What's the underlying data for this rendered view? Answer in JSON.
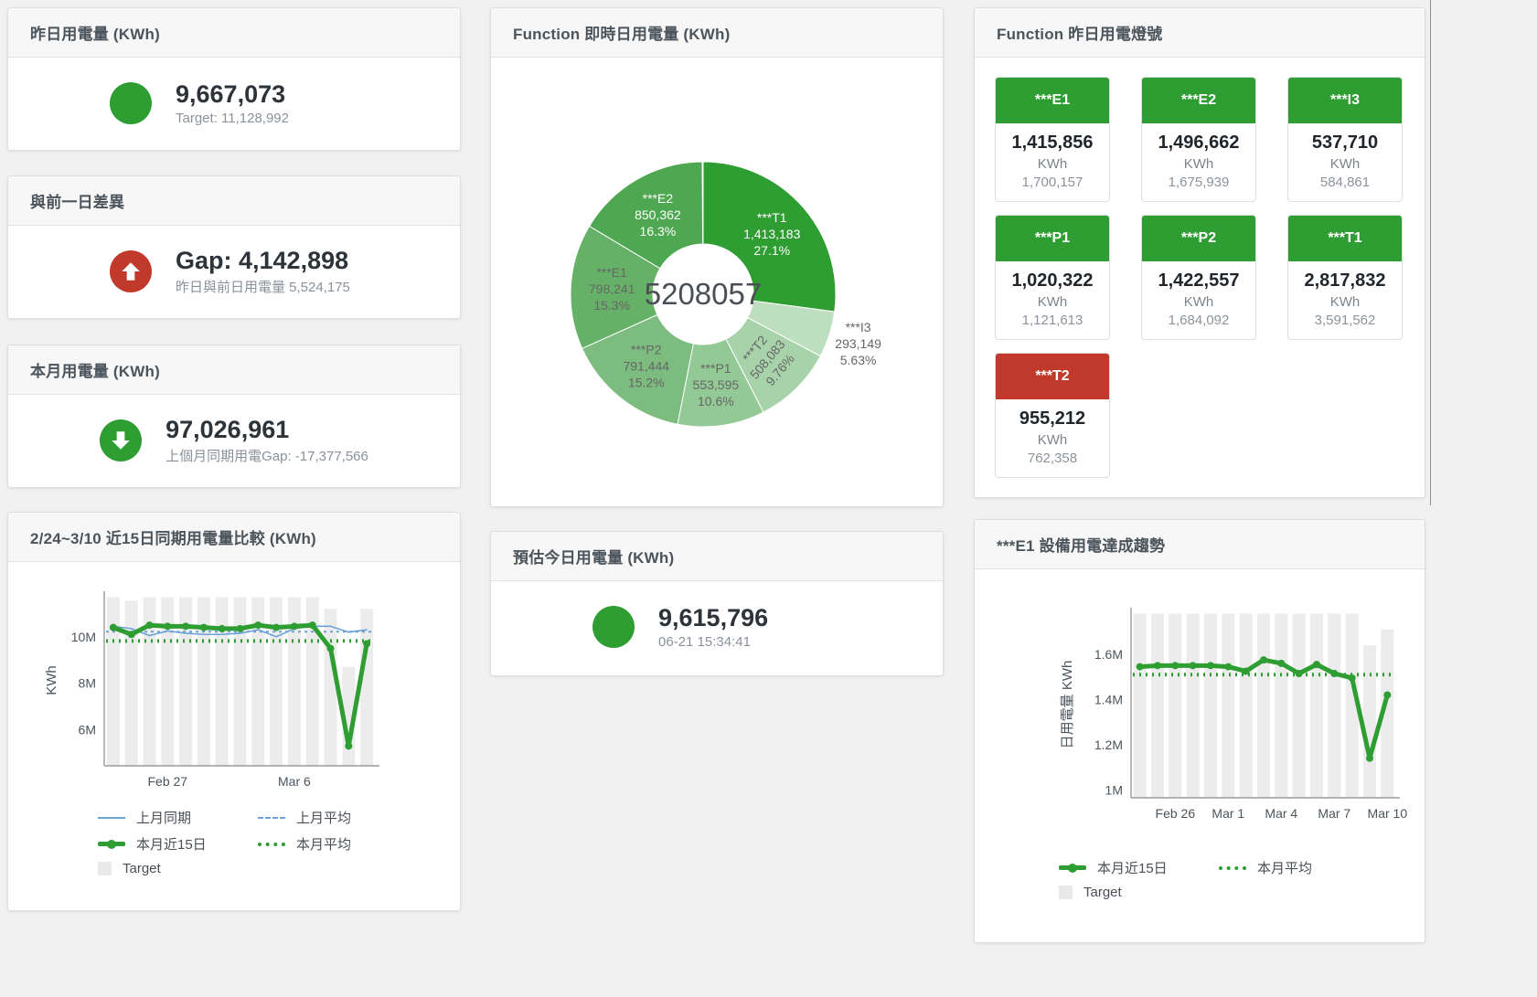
{
  "colors": {
    "green_accent": "#2e9d32",
    "red_accent": "#c0392b",
    "blue_line": "#6ba3d6",
    "target_bar_grey": "#ececec"
  },
  "cards": {
    "yesterday": {
      "title": "昨日用電量 (KWh)",
      "value": "9,667,073",
      "subtitle": "Target: 11,128,992"
    },
    "day_gap": {
      "title": "與前一日差異",
      "value": "Gap: 4,142,898",
      "subtitle": "昨日與前日用電量 5,524,175"
    },
    "month": {
      "title": "本月用電量 (KWh)",
      "value": "97,026,961",
      "subtitle": "上個月同期用電Gap: -17,377,566"
    },
    "forecast": {
      "title": "預估今日用電量 (KWh)",
      "value": "9,615,796",
      "subtitle": "06-21 15:34:41"
    },
    "realtime_donut": {
      "title": "Function 即時日用電量 (KWh)"
    },
    "lights": {
      "title": "Function 昨日用電燈號"
    },
    "compare": {
      "title": "2/24~3/10 近15日同期用電量比較 (KWh)"
    },
    "trend": {
      "title": "***E1 設備用電達成趨勢"
    }
  },
  "tiles": [
    {
      "label": "***E1",
      "status": "green",
      "value": "1,415,856",
      "unit": "KWh",
      "target": "1,700,157"
    },
    {
      "label": "***E2",
      "status": "green",
      "value": "1,496,662",
      "unit": "KWh",
      "target": "1,675,939"
    },
    {
      "label": "***I3",
      "status": "green",
      "value": "537,710",
      "unit": "KWh",
      "target": "584,861"
    },
    {
      "label": "***P1",
      "status": "green",
      "value": "1,020,322",
      "unit": "KWh",
      "target": "1,121,613"
    },
    {
      "label": "***P2",
      "status": "green",
      "value": "1,422,557",
      "unit": "KWh",
      "target": "1,684,092"
    },
    {
      "label": "***T1",
      "status": "green",
      "value": "2,817,832",
      "unit": "KWh",
      "target": "3,591,562"
    },
    {
      "label": "***T2",
      "status": "red",
      "value": "955,212",
      "unit": "KWh",
      "target": "762,358"
    }
  ],
  "chart_data": [
    {
      "id": "donut",
      "type": "pie",
      "title": "Function 即時日用電量 (KWh)",
      "center_total": "5208057",
      "slices": [
        {
          "name": "***T1",
          "value": 1413183,
          "display": "1,413,183",
          "pct": "27.1%",
          "share": 27.1,
          "color": "#2e9d32",
          "label_color": "#ffffff"
        },
        {
          "name": "***I3",
          "value": 293149,
          "display": "293,149",
          "pct": "5.63%",
          "share": 5.63,
          "color": "#bedfbf",
          "label_color": "#666666",
          "outside": true
        },
        {
          "name": "***T2",
          "value": 508083,
          "display": "508,083",
          "pct": "9.76%",
          "share": 9.76,
          "color": "#a8d3aa",
          "label_color": "#666666",
          "rotate": -50
        },
        {
          "name": "***P1",
          "value": 553595,
          "display": "553,595",
          "pct": "10.6%",
          "share": 10.6,
          "color": "#93c995",
          "label_color": "#666666"
        },
        {
          "name": "***P2",
          "value": 791444,
          "display": "791,444",
          "pct": "15.2%",
          "share": 15.2,
          "color": "#7cbc7e",
          "label_color": "#666666"
        },
        {
          "name": "***E1",
          "value": 798241,
          "display": "798,241",
          "pct": "15.3%",
          "share": 15.3,
          "color": "#66b168",
          "label_color": "#666666"
        },
        {
          "name": "***E2",
          "value": 850362,
          "display": "850,362",
          "pct": "16.3%",
          "share": 16.3,
          "color": "#4ea751",
          "label_color": "#ffffff"
        }
      ]
    },
    {
      "id": "compare",
      "type": "bar",
      "title": "2/24~3/10 近15日同期用電量比較 (KWh)",
      "ylabel": "KWh",
      "unit": "M KWh",
      "ylim": [
        4.45,
        11.8
      ],
      "yticks": [
        {
          "v": 6,
          "label": "6M"
        },
        {
          "v": 8,
          "label": "8M"
        },
        {
          "v": 10,
          "label": "10M"
        }
      ],
      "xticks": [
        {
          "index": 3,
          "label": "Feb 27"
        },
        {
          "index": 10,
          "label": "Mar 6"
        }
      ],
      "bars": {
        "name": "Target",
        "color": "#ececec",
        "values": [
          11.7,
          11.55,
          11.7,
          11.7,
          11.7,
          11.7,
          11.7,
          11.7,
          11.7,
          11.7,
          11.7,
          11.7,
          11.2,
          8.7,
          11.2
        ]
      },
      "series": [
        {
          "name": "上月同期",
          "type": "line",
          "color": "#6ba3d6",
          "width": 1.6,
          "values": [
            10.45,
            10.35,
            10.05,
            10.25,
            10.15,
            10.1,
            10.1,
            10.15,
            10.3,
            10.0,
            10.35,
            10.45,
            10.45,
            10.2,
            10.3
          ]
        },
        {
          "name": "上月平均",
          "type": "avg",
          "color": "#6ba3d6",
          "width": 2,
          "dash": "3 4",
          "value": 10.22
        },
        {
          "name": "本月近15日",
          "type": "line",
          "color": "#2e9d32",
          "width": 5,
          "markers": true,
          "values": [
            10.4,
            10.1,
            10.5,
            10.45,
            10.45,
            10.4,
            10.35,
            10.35,
            10.5,
            10.4,
            10.45,
            10.5,
            9.5,
            5.3,
            9.7
          ]
        },
        {
          "name": "本月平均",
          "type": "avg",
          "color": "#2e9d32",
          "width": 4,
          "dash": "2 5",
          "value": 9.82
        }
      ],
      "legend": [
        {
          "swatch": "line-blue",
          "label": "上月同期"
        },
        {
          "swatch": "dash-blue",
          "label": "上月平均"
        },
        {
          "swatch": "line-green",
          "label": "本月近15日"
        },
        {
          "swatch": "dot-green",
          "label": "本月平均"
        },
        {
          "swatch": "square-grey",
          "label": "Target"
        }
      ]
    },
    {
      "id": "trend",
      "type": "bar",
      "title": "***E1 設備用電達成趨勢",
      "ylabel": "日用電量 KWh",
      "unit": "M KWh",
      "ylim": [
        0.965,
        1.79
      ],
      "yticks": [
        {
          "v": 1.0,
          "label": "1M"
        },
        {
          "v": 1.2,
          "label": "1.2M"
        },
        {
          "v": 1.4,
          "label": "1.4M"
        },
        {
          "v": 1.6,
          "label": "1.6M"
        }
      ],
      "xticks": [
        {
          "index": 2,
          "label": "Feb 26"
        },
        {
          "index": 5,
          "label": "Mar 1"
        },
        {
          "index": 8,
          "label": "Mar 4"
        },
        {
          "index": 11,
          "label": "Mar 7"
        },
        {
          "index": 14,
          "label": "Mar 10"
        }
      ],
      "bars": {
        "name": "Target",
        "color": "#ececec",
        "values": [
          1.78,
          1.78,
          1.78,
          1.78,
          1.78,
          1.78,
          1.78,
          1.78,
          1.78,
          1.78,
          1.78,
          1.78,
          1.78,
          1.64,
          1.71
        ]
      },
      "series": [
        {
          "name": "本月近15日",
          "type": "line",
          "color": "#2e9d32",
          "width": 5,
          "markers": true,
          "values": [
            1.545,
            1.55,
            1.55,
            1.55,
            1.55,
            1.545,
            1.525,
            1.575,
            1.56,
            1.515,
            1.555,
            1.515,
            1.495,
            1.14,
            1.42
          ]
        },
        {
          "name": "本月平均",
          "type": "avg",
          "color": "#2e9d32",
          "width": 4,
          "dash": "2 5",
          "value": 1.51
        }
      ],
      "legend": [
        {
          "swatch": "line-green",
          "label": "本月近15日"
        },
        {
          "swatch": "dot-green",
          "label": "本月平均"
        },
        {
          "swatch": "square-grey",
          "label": "Target"
        }
      ]
    }
  ]
}
